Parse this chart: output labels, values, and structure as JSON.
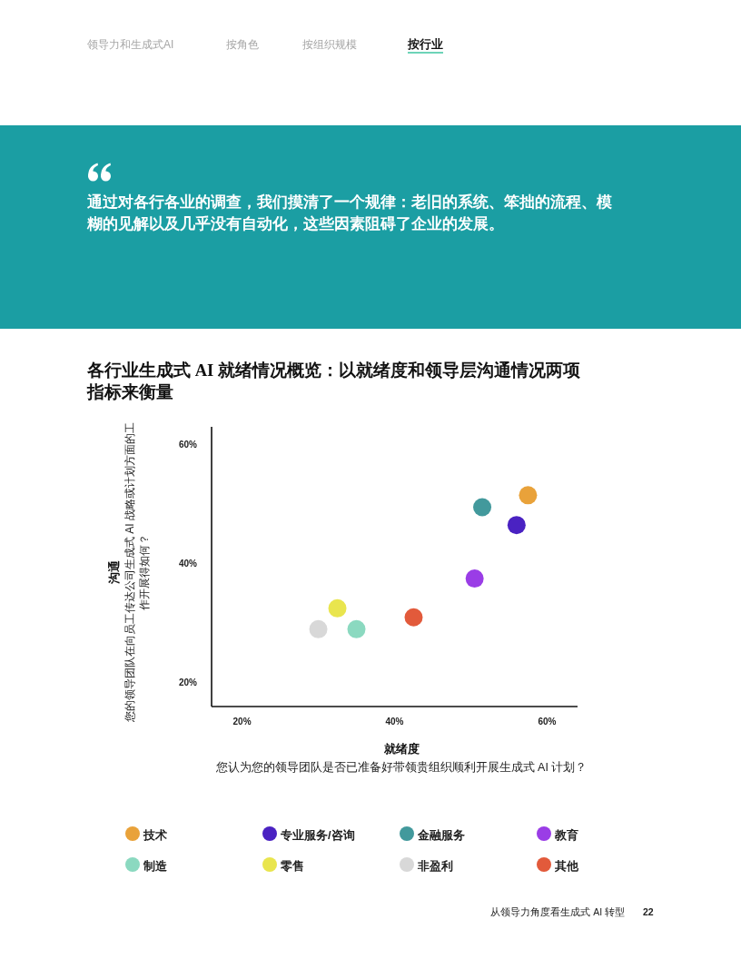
{
  "chart_data": {
    "type": "scatter",
    "title": "各行业生成式 AI 就绪情况概览：以就绪度和领导层沟通情况两项指标来衡量",
    "xlabel": "就绪度",
    "ylabel": "沟通",
    "xlim": [
      16,
      64
    ],
    "ylim": [
      16,
      63
    ],
    "xticks": [
      {
        "value": 20,
        "label": "20%"
      },
      {
        "value": 40,
        "label": "40%"
      },
      {
        "value": 60,
        "label": "60%"
      }
    ],
    "yticks": [
      {
        "value": 20,
        "label": "20%"
      },
      {
        "value": 40,
        "label": "40%"
      },
      {
        "value": 60,
        "label": "60%"
      }
    ],
    "legend": "bottom",
    "marker": "circle",
    "series": [
      {
        "name": "技术",
        "color": "#e9a23a",
        "x": [
          57.5
        ],
        "values": [
          51.5
        ]
      },
      {
        "name": "专业服务/咨询",
        "color": "#4a22c2",
        "x": [
          56
        ],
        "values": [
          46.5
        ]
      },
      {
        "name": "金融服务",
        "color": "#42999c",
        "x": [
          51.5
        ],
        "values": [
          49.5
        ]
      },
      {
        "name": "教育",
        "color": "#9a3de6",
        "x": [
          50.5
        ],
        "values": [
          37.5
        ]
      },
      {
        "name": "制造",
        "color": "#8bd9c0",
        "x": [
          35
        ],
        "values": [
          29
        ]
      },
      {
        "name": "零售",
        "color": "#e9e54e",
        "x": [
          32.5
        ],
        "values": [
          32.5
        ]
      },
      {
        "name": "非盈利",
        "color": "#d8d8d8",
        "x": [
          30
        ],
        "values": [
          29
        ]
      },
      {
        "name": "其他",
        "color": "#e25a3b",
        "x": [
          42.5
        ],
        "values": [
          31
        ]
      }
    ],
    "annotations": [
      "领导力和生成式AI",
      "按角色",
      "按组织规模",
      "按行业",
      "通过对各行各业的调查，我们摸清了一个规律：老旧的系统、笨拙的流程、模糊的见解以及几乎没有自动化，这些因素阻碍了企业的发展。",
      "您的领导团队在向员工传达公司生成式 AI 战略或计划方面的工作开展得如何？",
      "您认为您的领导团队是否已准备好带领贵组织顺利开展生成式 AI 计划？",
      "从领导力角度看生成式 AI 转型",
      "22"
    ]
  }
}
